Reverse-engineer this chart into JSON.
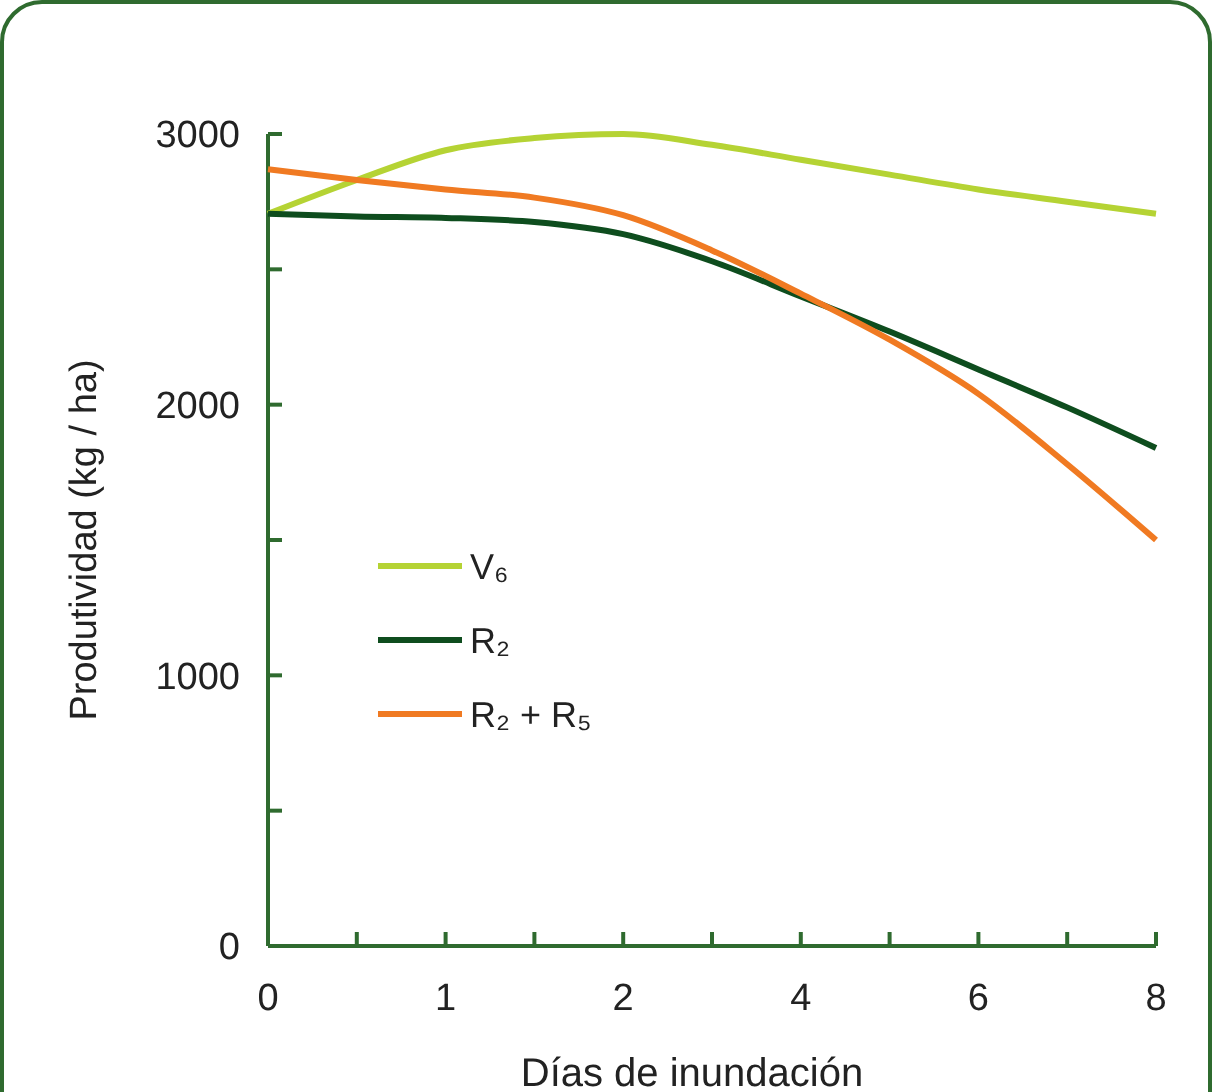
{
  "chart_data": {
    "type": "line",
    "xlabel": "Días de inundación",
    "ylabel": "Produtividad (kg / ha)",
    "categories": [
      "0",
      null,
      "1",
      null,
      "2",
      null,
      "4",
      null,
      "6",
      null,
      "8"
    ],
    "ylim": [
      0,
      3000
    ],
    "yticks": [
      0,
      {
        "value": 500,
        "label": null
      },
      1000,
      {
        "value": 1500,
        "label": null
      },
      2000,
      {
        "value": 2500,
        "label": null
      },
      3000
    ],
    "grid": false,
    "legend": "left",
    "marker": "none",
    "line_style": "solid",
    "series": [
      {
        "name": "V₆",
        "color": "#b5d334",
        "values": [
          2705,
          2830,
          2940,
          2985,
          3000,
          2960,
          2905,
          2850,
          2795,
          2750,
          2705
        ]
      },
      {
        "name": "R₂",
        "color": "#0e4d1e",
        "values": [
          2705,
          2695,
          2690,
          2675,
          2630,
          2530,
          2400,
          2270,
          2130,
          1990,
          1840
        ]
      },
      {
        "name": "R₂ + R₅",
        "color": "#f07a22",
        "values": [
          2870,
          2830,
          2795,
          2765,
          2700,
          2570,
          2410,
          2240,
          2040,
          1780,
          1500
        ]
      }
    ]
  }
}
